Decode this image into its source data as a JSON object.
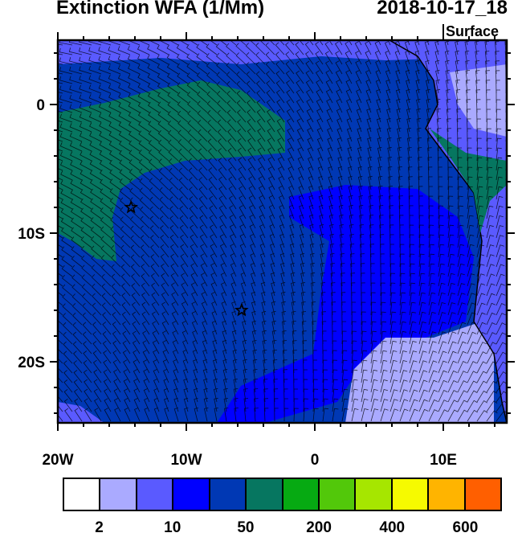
{
  "title": "Extinction WFA (1/Mm)",
  "datetime": "2018-10-17_18",
  "level": "Surface",
  "map": {
    "lon_range": [
      -20,
      15
    ],
    "lat_range": [
      -25,
      5
    ],
    "x_ticks": [
      {
        "lon": -20,
        "label": "20W"
      },
      {
        "lon": -10,
        "label": "10W"
      },
      {
        "lon": 0,
        "label": "0"
      },
      {
        "lon": 10,
        "label": "10E"
      }
    ],
    "y_ticks": [
      {
        "lat": 0,
        "label": "0"
      },
      {
        "lat": -10,
        "label": "10S"
      },
      {
        "lat": -20,
        "label": "20S"
      }
    ],
    "markers": [
      {
        "lon": -14.3,
        "lat": -8,
        "symbol": "star"
      },
      {
        "lon": -5.7,
        "lat": -16,
        "symbol": "star"
      }
    ],
    "overlay": "wind barbs"
  },
  "colorbar": {
    "colors": [
      "#ffffff",
      "#aaaaff",
      "#5a5aff",
      "#0000ff",
      "#0038b4",
      "#067660",
      "#06aa12",
      "#52c80a",
      "#a6e600",
      "#f6fa00",
      "#ffb400",
      "#ff5f00",
      "#ff0f00"
    ],
    "labels": [
      {
        "after_box": 1,
        "text": "2"
      },
      {
        "after_box": 3,
        "text": "10"
      },
      {
        "after_box": 5,
        "text": "50"
      },
      {
        "after_box": 7,
        "text": "200"
      },
      {
        "after_box": 9,
        "text": "400"
      },
      {
        "after_box": 11,
        "text": "600"
      }
    ]
  }
}
